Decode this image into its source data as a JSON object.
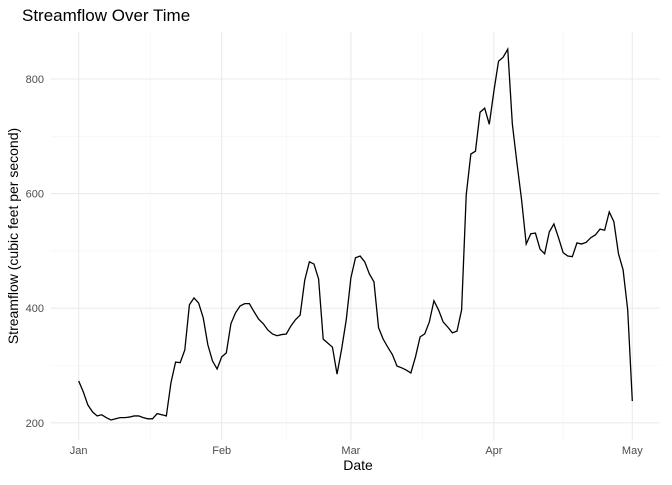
{
  "chart_data": {
    "type": "line",
    "title": "Streamflow Over Time",
    "x_label": "Date",
    "y_label": "Streamflow (cubic feet per second)",
    "color": "#000000",
    "grid": true,
    "x": [
      0,
      1,
      2,
      3,
      4,
      5,
      6,
      7,
      8,
      9,
      10,
      11,
      12,
      13,
      14,
      15,
      16,
      17,
      18,
      19,
      20,
      21,
      22,
      23,
      24,
      25,
      26,
      27,
      28,
      29,
      30,
      31,
      32,
      33,
      34,
      35,
      36,
      37,
      38,
      39,
      40,
      41,
      42,
      43,
      44,
      45,
      46,
      47,
      48,
      49,
      50,
      51,
      52,
      53,
      54,
      55,
      56,
      57,
      58,
      59,
      60,
      61,
      62,
      63,
      64,
      65,
      66,
      67,
      68,
      69,
      70,
      71,
      72,
      73,
      74,
      75,
      76,
      77,
      78,
      79,
      80,
      81,
      82,
      83,
      84,
      85,
      86,
      87,
      88,
      89,
      90,
      91,
      92,
      93,
      94,
      95,
      96,
      97,
      98,
      99,
      100,
      101,
      102,
      103,
      104,
      105,
      106,
      107,
      108,
      109,
      110,
      111,
      112,
      113,
      114,
      115,
      116,
      117,
      118,
      119,
      120
    ],
    "values": [
      273,
      254,
      231,
      219,
      212,
      214,
      209,
      205,
      207,
      209,
      209,
      210,
      212,
      212,
      209,
      207,
      207,
      216,
      214,
      212,
      270,
      306,
      305,
      327,
      406,
      418,
      409,
      383,
      336,
      308,
      294,
      315,
      322,
      373,
      392,
      404,
      408,
      408,
      394,
      381,
      373,
      362,
      355,
      352,
      354,
      355,
      369,
      380,
      388,
      449,
      481,
      477,
      451,
      346,
      339,
      332,
      285,
      329,
      380,
      453,
      488,
      491,
      481,
      460,
      446,
      366,
      346,
      332,
      319,
      299,
      296,
      292,
      287,
      315,
      350,
      355,
      376,
      413,
      397,
      376,
      367,
      357,
      360,
      397,
      598,
      669,
      674,
      742,
      749,
      721,
      779,
      831,
      838,
      852,
      721,
      653,
      589,
      512,
      530,
      531,
      503,
      495,
      533,
      547,
      523,
      497,
      491,
      490,
      514,
      512,
      515,
      523,
      528,
      538,
      536,
      568,
      551,
      495,
      467,
      397,
      238
    ],
    "xlim": [
      -6,
      126
    ],
    "ylim": [
      170,
      882
    ],
    "xticks": [
      {
        "value": 0,
        "label": "Jan"
      },
      {
        "value": 31,
        "label": "Feb"
      },
      {
        "value": 59,
        "label": "Mar"
      },
      {
        "value": 90,
        "label": "Apr"
      },
      {
        "value": 120,
        "label": "May"
      }
    ],
    "yticks": [
      200,
      400,
      600,
      800
    ]
  }
}
